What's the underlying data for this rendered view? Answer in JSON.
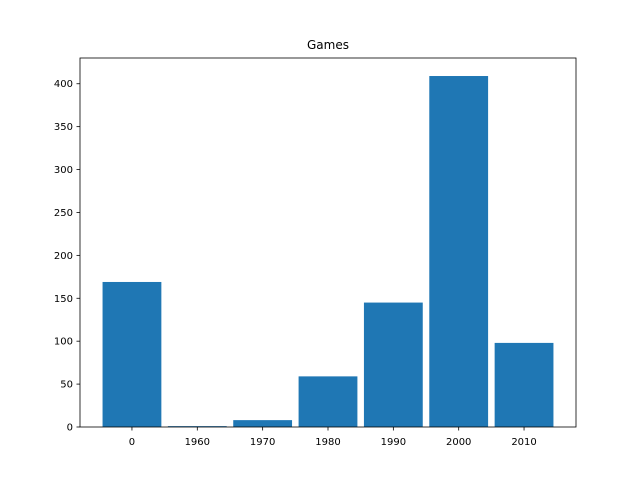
{
  "chart_data": {
    "type": "bar",
    "title": "Games",
    "xlabel": "",
    "ylabel": "",
    "categories": [
      "0",
      "1960",
      "1970",
      "1980",
      "1990",
      "2000",
      "2010"
    ],
    "values": [
      169,
      1,
      8,
      59,
      145,
      409,
      98
    ],
    "ylim": [
      0,
      430
    ],
    "yticks": [
      0,
      50,
      100,
      150,
      200,
      250,
      300,
      350,
      400
    ],
    "grid": false,
    "legend": "none",
    "bar_color": "#1f77b4"
  }
}
